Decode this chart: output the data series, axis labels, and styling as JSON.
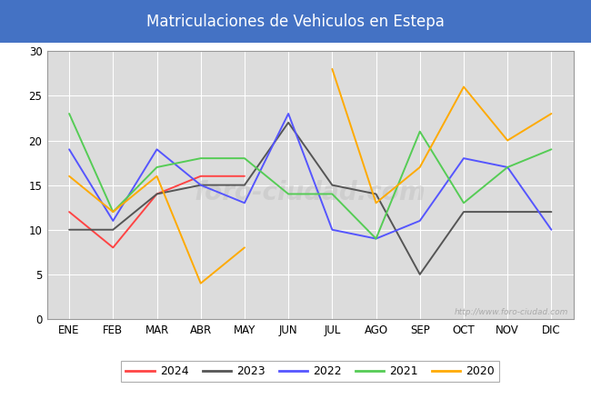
{
  "title": "Matriculaciones de Vehiculos en Estepa",
  "title_bg_color": "#4472C4",
  "title_text_color": "#FFFFFF",
  "months": [
    "ENE",
    "FEB",
    "MAR",
    "ABR",
    "MAY",
    "JUN",
    "JUL",
    "AGO",
    "SEP",
    "OCT",
    "NOV",
    "DIC"
  ],
  "series": {
    "2024": {
      "color": "#FF4444",
      "data": [
        12,
        8,
        14,
        16,
        16,
        null,
        null,
        null,
        null,
        null,
        null,
        null
      ]
    },
    "2023": {
      "color": "#555555",
      "data": [
        10,
        10,
        14,
        15,
        15,
        22,
        15,
        14,
        5,
        12,
        12,
        12
      ]
    },
    "2022": {
      "color": "#5555FF",
      "data": [
        19,
        11,
        19,
        15,
        13,
        23,
        10,
        9,
        11,
        18,
        17,
        10
      ]
    },
    "2021": {
      "color": "#55CC55",
      "data": [
        23,
        12,
        17,
        18,
        18,
        14,
        14,
        9,
        21,
        13,
        17,
        19
      ]
    },
    "2020": {
      "color": "#FFAA00",
      "data": [
        16,
        12,
        16,
        4,
        8,
        null,
        28,
        13,
        17,
        26,
        20,
        23
      ]
    }
  },
  "ylim": [
    0,
    30
  ],
  "yticks": [
    0,
    5,
    10,
    15,
    20,
    25,
    30
  ],
  "watermark_plot": "http://www.foro-ciudad.com",
  "watermark_center": "foro-ciudad.com",
  "plot_bg_color": "#DCDCDC",
  "grid_color": "#FFFFFF",
  "fig_bg_color": "#FFFFFF",
  "legend_order": [
    "2024",
    "2023",
    "2022",
    "2021",
    "2020"
  ],
  "figsize": [
    6.5,
    4.5
  ],
  "dpi": 100
}
